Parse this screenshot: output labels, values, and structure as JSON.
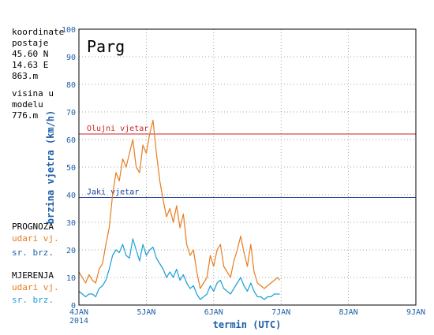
{
  "sidebar": {
    "coords_label": "koordinate\npostaje",
    "lat": "45.60 N",
    "lon": "14.63 E",
    "elevation": "863.m",
    "model_label": "visina u\nmodelu",
    "model_elevation": "776.m",
    "forecast_title": "PROGNOZA",
    "forecast_gusts": "udari vj.",
    "forecast_mean": "sr. brz.",
    "measure_title": "MJERENJA",
    "measure_gusts": "udari vj.",
    "measure_mean": "sr. brz."
  },
  "colors": {
    "gust": "#e87d1e",
    "mean": "#1aa0d8",
    "storm_line": "#cc2222",
    "strong_line": "#1f3f99",
    "axis_text": "#1f5fa8"
  },
  "chart_data": {
    "type": "line",
    "title": "Parg",
    "xlabel": "termin (UTC)",
    "ylabel": "brzina vjetra (km/h)",
    "ylim": [
      0,
      100
    ],
    "yticks": [
      0,
      10,
      20,
      30,
      40,
      50,
      60,
      70,
      80,
      90,
      100
    ],
    "x_unit": "days from 4JAN 2014 00UTC",
    "xlim": [
      0,
      5
    ],
    "xticks": [
      {
        "x": 0,
        "label": "4JAN",
        "sublabel": "2014"
      },
      {
        "x": 1,
        "label": "5JAN",
        "sublabel": ""
      },
      {
        "x": 2,
        "label": "6JAN",
        "sublabel": ""
      },
      {
        "x": 3,
        "label": "7JAN",
        "sublabel": ""
      },
      {
        "x": 4,
        "label": "8JAN",
        "sublabel": ""
      },
      {
        "x": 5,
        "label": "9JAN",
        "sublabel": ""
      }
    ],
    "grid": true,
    "reference_lines": [
      {
        "label": "Olujni vjetar",
        "y": 62,
        "color": "#cc2222"
      },
      {
        "label": "Jaki vjetar",
        "y": 39,
        "color": "#1f3f99"
      }
    ],
    "series": [
      {
        "name": "udari vj.",
        "color": "#e87d1e",
        "x": [
          0.0,
          0.05,
          0.1,
          0.15,
          0.2,
          0.25,
          0.3,
          0.35,
          0.4,
          0.45,
          0.5,
          0.55,
          0.6,
          0.65,
          0.7,
          0.75,
          0.8,
          0.85,
          0.9,
          0.95,
          1.0,
          1.05,
          1.1,
          1.15,
          1.2,
          1.25,
          1.3,
          1.35,
          1.4,
          1.45,
          1.5,
          1.55,
          1.6,
          1.65,
          1.7,
          1.75,
          1.8,
          1.85,
          1.9,
          1.95,
          2.0,
          2.05,
          2.1,
          2.15,
          2.2,
          2.25,
          2.3,
          2.35,
          2.4,
          2.45,
          2.5,
          2.55,
          2.6,
          2.65,
          2.7,
          2.75,
          2.8,
          2.85,
          2.9,
          2.95,
          2.98
        ],
        "y": [
          12,
          10,
          8,
          11,
          9,
          8,
          13,
          15,
          22,
          28,
          40,
          48,
          45,
          53,
          50,
          55,
          60,
          50,
          48,
          58,
          55,
          62,
          67,
          55,
          45,
          38,
          32,
          35,
          30,
          36,
          28,
          33,
          22,
          18,
          20,
          12,
          6,
          8,
          10,
          18,
          14,
          20,
          22,
          14,
          12,
          10,
          16,
          20,
          25,
          19,
          14,
          22,
          12,
          8,
          7,
          6,
          7,
          8,
          9,
          10,
          9
        ],
        "line_width": 1.2
      },
      {
        "name": "sr. brz.",
        "color": "#1aa0d8",
        "x": [
          0.0,
          0.05,
          0.1,
          0.15,
          0.2,
          0.25,
          0.3,
          0.35,
          0.4,
          0.45,
          0.5,
          0.55,
          0.6,
          0.65,
          0.7,
          0.75,
          0.8,
          0.85,
          0.9,
          0.95,
          1.0,
          1.05,
          1.1,
          1.15,
          1.2,
          1.25,
          1.3,
          1.35,
          1.4,
          1.45,
          1.5,
          1.55,
          1.6,
          1.65,
          1.7,
          1.75,
          1.8,
          1.85,
          1.9,
          1.95,
          2.0,
          2.05,
          2.1,
          2.15,
          2.2,
          2.25,
          2.3,
          2.35,
          2.4,
          2.45,
          2.5,
          2.55,
          2.6,
          2.65,
          2.7,
          2.75,
          2.8,
          2.85,
          2.9,
          2.95,
          2.98
        ],
        "y": [
          5,
          4,
          3,
          4,
          4,
          3,
          6,
          7,
          9,
          13,
          18,
          20,
          19,
          22,
          18,
          17,
          24,
          20,
          16,
          22,
          18,
          20,
          21,
          17,
          15,
          13,
          10,
          12,
          10,
          13,
          9,
          11,
          8,
          6,
          7,
          4,
          2,
          3,
          4,
          7,
          5,
          8,
          9,
          6,
          5,
          4,
          6,
          8,
          10,
          7,
          5,
          8,
          5,
          3,
          3,
          2,
          3,
          3,
          4,
          4,
          4
        ],
        "line_width": 1.2
      }
    ]
  }
}
